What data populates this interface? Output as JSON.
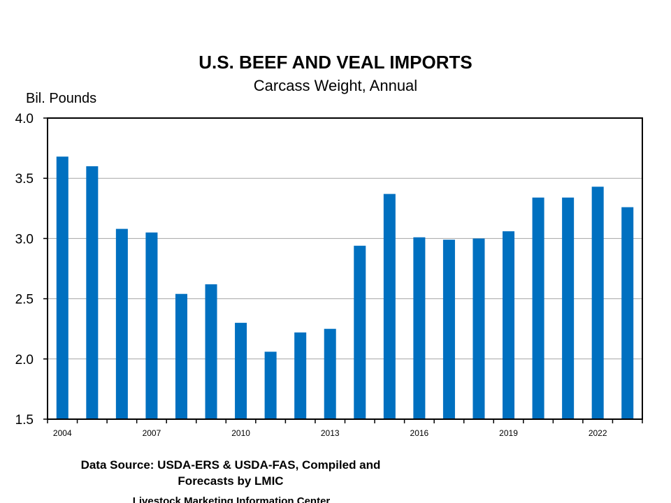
{
  "chart_data": {
    "type": "bar",
    "title": "U.S. BEEF AND VEAL IMPORTS",
    "subtitle": "Carcass Weight, Annual",
    "ylabel": "Bil. Pounds",
    "ylim": [
      1.5,
      4.0
    ],
    "yticks": [
      "4.0",
      "3.5",
      "3.0",
      "2.5",
      "2.0",
      "1.5"
    ],
    "grid": true,
    "bar_color": "#0070C0",
    "categories": [
      "2004",
      "2005",
      "2006",
      "2007",
      "2008",
      "2009",
      "2010",
      "2011",
      "2012",
      "2013",
      "2014",
      "2015",
      "2016",
      "2017",
      "2018",
      "2019",
      "2020",
      "2021",
      "2022",
      "2023"
    ],
    "x_tick_labels": [
      "2004",
      "",
      "",
      "2007",
      "",
      "",
      "2010",
      "",
      "",
      "2013",
      "",
      "",
      "2016",
      "",
      "",
      "2019",
      "",
      "",
      "2022",
      ""
    ],
    "values": [
      3.68,
      3.6,
      3.08,
      3.05,
      2.54,
      2.62,
      2.3,
      2.06,
      2.22,
      2.25,
      2.94,
      3.37,
      3.01,
      2.99,
      3.0,
      3.06,
      3.34,
      3.34,
      3.43,
      3.26
    ]
  },
  "source_line1": "Data Source:  USDA-ERS & USDA-FAS, Compiled and",
  "source_line2": "Forecasts by LMIC",
  "footer": "Livestock Marketing Information Center"
}
